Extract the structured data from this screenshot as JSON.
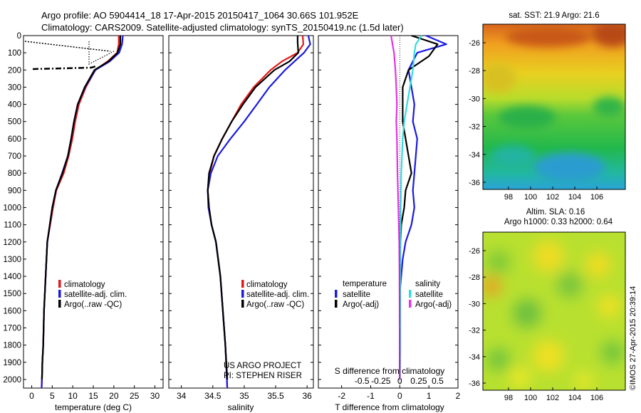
{
  "header": {
    "title_line1": "Argo profile: AO 5904414_18 17-Apr-2015 20150417_1064 30.66S 101.952E",
    "title_line2": "Climatology: CARS2009. Satellite-adjusted climatology: synTS_20150419.nc (1.5d later)"
  },
  "colors": {
    "climatology": "#e11a1a",
    "satellite": "#1a1ae0",
    "argo": "#000000",
    "sat_salinity": "#33dddd",
    "argo_salinity": "#e633e6"
  },
  "depth_axis": {
    "ylim": [
      0,
      2050
    ],
    "ticks": [
      0,
      100,
      200,
      300,
      400,
      500,
      600,
      700,
      800,
      900,
      1000,
      1100,
      1200,
      1300,
      1400,
      1500,
      1600,
      1700,
      1800,
      1900,
      2000
    ]
  },
  "temperature_panel": {
    "xlabel": "temperature (deg C)",
    "xlim": [
      -2,
      32
    ],
    "xticks": [
      0,
      5,
      10,
      15,
      20,
      25,
      30
    ],
    "legend": [
      "climatology",
      "satellite-adj. clim.",
      "Argo(..raw -QC)"
    ]
  },
  "salinity_panel": {
    "xlabel": "salinity",
    "xlim": [
      33.8,
      36.1
    ],
    "xticks": [
      "34",
      "34.5",
      "35",
      "35.5",
      "36"
    ],
    "legend": [
      "climatology",
      "satellite-adj. clim.",
      "Argo(..raw -QC)"
    ],
    "project_line1": "US ARGO PROJECT",
    "project_line2": "PI: STEPHEN RISER"
  },
  "difference_panel": {
    "xlabel": "T difference from climatology",
    "xlim": [
      -2.8,
      2
    ],
    "xticks": [
      "-2",
      "-1",
      "0",
      "1",
      "2"
    ],
    "top_label": "S difference from climatology",
    "top_ticks": [
      "-0.5",
      "-0.25",
      "0",
      "0.25",
      "0.5"
    ],
    "legend_temperature_title": "temperature",
    "legend_salinity_title": "salinity",
    "legend_items": [
      "satellite",
      "Argo(-adj)",
      "satellite",
      "Argo(-adj)"
    ]
  },
  "sst_map": {
    "title": "sat. SST: 21.9 Argo: 21.6",
    "xticks": [
      "98",
      "100",
      "102",
      "104",
      "106"
    ],
    "yticks": [
      "-26",
      "-28",
      "-30",
      "-32",
      "-34",
      "-36"
    ]
  },
  "sla_map": {
    "title_line1": "Altim. SLA: 0.16",
    "title_line2": "Argo h1000: 0.33 h2000: 0.64",
    "xticks": [
      "98",
      "100",
      "102",
      "104",
      "106"
    ],
    "yticks": [
      "-26",
      "-28",
      "-30",
      "-32",
      "-34",
      "-36"
    ]
  },
  "credit": "©IMOS 27-Apr-2015 20:39:14",
  "chart_data": [
    {
      "type": "line",
      "xlabel": "temperature (deg C)",
      "ylim": [
        0,
        2050
      ],
      "xlim": [
        -2,
        32
      ],
      "series": [
        {
          "name": "climatology",
          "x": [
            21.2,
            21.2,
            20.8,
            18.5,
            15.5,
            13.2,
            11.5,
            10.6,
            9.9,
            9.0,
            7.8,
            6.0,
            5.2,
            4.5,
            3.8,
            3.4,
            3.0,
            2.8,
            2.6,
            2.5,
            2.4
          ],
          "y": [
            0,
            50,
            100,
            150,
            200,
            300,
            400,
            500,
            600,
            700,
            800,
            900,
            1000,
            1100,
            1200,
            1400,
            1600,
            1800,
            1900,
            2000,
            2050
          ]
        },
        {
          "name": "satellite-adj. clim.",
          "x": [
            22.2,
            22.0,
            21.3,
            19.0,
            15.5,
            13.0,
            11.2,
            10.3,
            9.6,
            8.8,
            7.4,
            5.9,
            5.0,
            4.4,
            3.8,
            3.4,
            3.0,
            2.8,
            2.6,
            2.5,
            2.4
          ],
          "y": [
            0,
            50,
            100,
            150,
            200,
            300,
            400,
            500,
            600,
            700,
            800,
            900,
            1000,
            1100,
            1200,
            1400,
            1600,
            1800,
            1900,
            2000,
            2050
          ]
        },
        {
          "name": "Argo(..raw -QC)",
          "x": [
            21.6,
            21.6,
            20.9,
            18.7,
            15.3,
            12.9,
            11.2,
            10.3,
            9.6,
            8.8,
            7.5,
            5.9,
            5.0,
            4.4,
            3.8,
            3.4,
            3.0,
            2.8,
            2.6,
            2.5
          ],
          "y": [
            0,
            50,
            100,
            150,
            200,
            300,
            400,
            500,
            600,
            700,
            800,
            900,
            1000,
            1100,
            1200,
            1400,
            1600,
            1800,
            1900,
            2000
          ]
        }
      ]
    },
    {
      "type": "line",
      "xlabel": "salinity",
      "ylim": [
        0,
        2050
      ],
      "xlim": [
        33.8,
        36.1
      ],
      "series": [
        {
          "name": "climatology",
          "x": [
            35.93,
            35.94,
            35.85,
            35.6,
            35.42,
            35.15,
            34.95,
            34.8,
            34.65,
            34.52,
            34.45,
            34.42,
            34.44,
            34.48,
            34.55,
            34.62,
            34.66,
            34.7,
            34.73
          ],
          "y": [
            0,
            50,
            100,
            150,
            200,
            300,
            400,
            500,
            600,
            700,
            800,
            900,
            1000,
            1100,
            1200,
            1400,
            1600,
            1800,
            2050
          ]
        },
        {
          "name": "satellite-adj. clim.",
          "x": [
            36.02,
            36.05,
            35.95,
            35.8,
            35.65,
            35.4,
            35.2,
            35.0,
            34.78,
            34.58,
            34.47,
            34.42,
            34.43,
            34.48,
            34.55,
            34.62,
            34.66,
            34.7,
            34.73
          ],
          "y": [
            0,
            50,
            100,
            150,
            200,
            300,
            400,
            500,
            600,
            700,
            800,
            900,
            1000,
            1100,
            1200,
            1400,
            1600,
            1800,
            2050
          ]
        },
        {
          "name": "Argo(..raw -QC)",
          "x": [
            35.85,
            35.85,
            35.86,
            35.72,
            35.48,
            35.18,
            34.98,
            34.8,
            34.65,
            34.52,
            34.44,
            34.42,
            34.44,
            34.48,
            34.55,
            34.62,
            34.66,
            34.7,
            34.73
          ],
          "y": [
            0,
            40,
            100,
            150,
            200,
            300,
            400,
            500,
            600,
            700,
            800,
            900,
            1000,
            1100,
            1200,
            1400,
            1600,
            1800,
            2000
          ]
        }
      ]
    },
    {
      "type": "line",
      "xlabel": "T difference from climatology",
      "top_label": "S difference from climatology",
      "ylim": [
        0,
        2050
      ],
      "xlim": [
        -2.8,
        2
      ],
      "series": [
        {
          "name": "temperature satellite",
          "x": [
            0.9,
            1.6,
            0.6,
            0.3,
            0.4,
            0.5,
            0.45,
            0.6,
            0.55,
            0.5,
            0.45,
            0.5,
            0.4,
            0.2,
            0.1,
            0.0,
            0.0,
            0.0,
            0.0
          ],
          "y": [
            0,
            50,
            100,
            200,
            300,
            400,
            500,
            600,
            700,
            800,
            900,
            1000,
            1100,
            1200,
            1300,
            1500,
            1700,
            1900,
            2000
          ]
        },
        {
          "name": "temperature Argo(-adj)",
          "x": [
            0.4,
            1.3,
            1.0,
            0.3,
            0.1,
            0.1,
            0.1,
            0.2,
            0.3,
            0.4,
            0.2,
            0.15,
            0.05,
            0.0,
            0.0,
            0.0
          ],
          "y": [
            0,
            50,
            120,
            200,
            300,
            400,
            500,
            600,
            700,
            800,
            900,
            1000,
            1100,
            1300,
            1600,
            2000
          ]
        },
        {
          "name": "salinity satellite",
          "x": [
            0.75,
            0.55,
            0.5,
            0.45,
            0.35,
            0.25,
            0.15,
            0.1,
            0.05,
            0.03,
            0.02,
            0.02,
            0.01
          ],
          "y": [
            0,
            50,
            100,
            200,
            300,
            400,
            500,
            600,
            800,
            1000,
            1400,
            1800,
            2000
          ]
        },
        {
          "name": "salinity Argo(-adj)",
          "x": [
            -0.3,
            -0.25,
            -0.2,
            -0.15,
            -0.12,
            -0.1,
            -0.12,
            -0.1,
            -0.08,
            -0.05,
            -0.02,
            -0.01,
            0.0
          ],
          "y": [
            0,
            50,
            100,
            200,
            300,
            400,
            500,
            600,
            800,
            1000,
            1200,
            1400,
            2000
          ]
        }
      ]
    }
  ]
}
